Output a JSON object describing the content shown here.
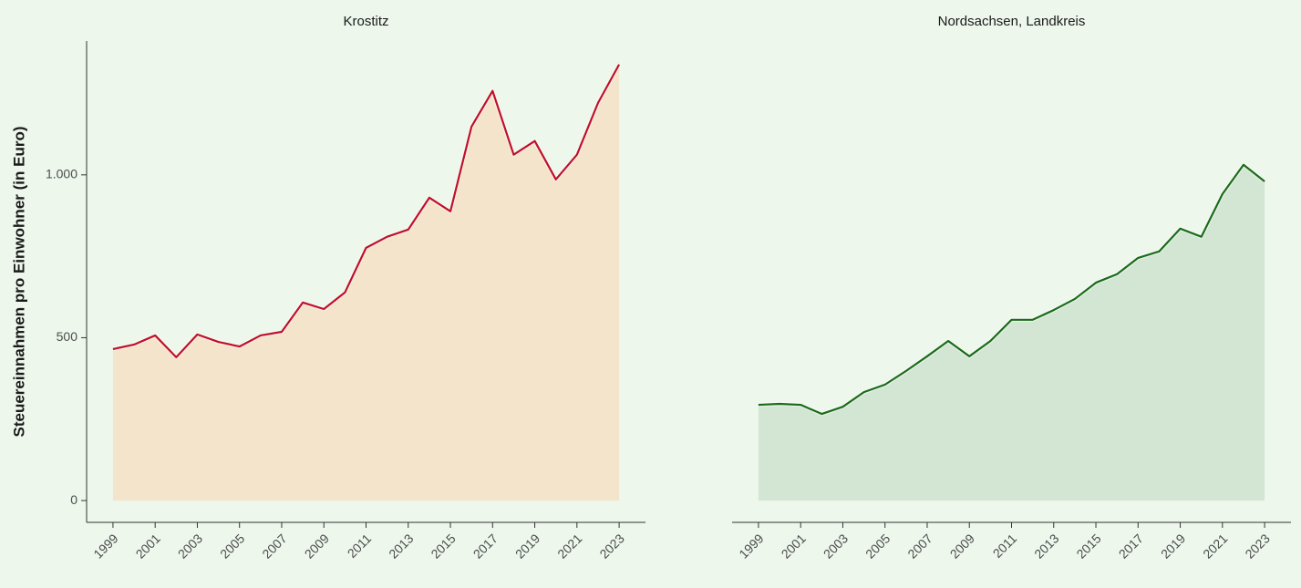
{
  "chart_data": [
    {
      "type": "area",
      "title": "Krostitz",
      "ylabel": "Steuereinnahmen pro Einwohner (in Euro)",
      "x": [
        1999,
        2000,
        2001,
        2002,
        2003,
        2004,
        2005,
        2006,
        2007,
        2008,
        2009,
        2010,
        2011,
        2012,
        2013,
        2014,
        2015,
        2016,
        2017,
        2018,
        2019,
        2020,
        2021,
        2022,
        2023
      ],
      "values": [
        465,
        479,
        507,
        440,
        510,
        487,
        473,
        507,
        518,
        608,
        588,
        639,
        776,
        810,
        832,
        930,
        888,
        1148,
        1258,
        1062,
        1104,
        986,
        1062,
        1221,
        1339
      ],
      "color": "#c0102a",
      "fill": "#f5e4cc",
      "xlim": [
        1997.75,
        2024.25
      ],
      "xticks": [
        1999,
        2001,
        2003,
        2005,
        2007,
        2009,
        2011,
        2013,
        2015,
        2017,
        2019,
        2021,
        2023
      ],
      "ylim": [
        -67,
        1411
      ],
      "yticks": [
        0,
        500,
        {
          "value": 1000,
          "label": "1.000"
        }
      ]
    },
    {
      "type": "area",
      "title": "Nordsachsen, Landkreis",
      "x": [
        1999,
        2000,
        2001,
        2002,
        2003,
        2004,
        2005,
        2006,
        2007,
        2008,
        2009,
        2010,
        2011,
        2012,
        2013,
        2014,
        2015,
        2016,
        2017,
        2018,
        2019,
        2020,
        2021,
        2022,
        2023
      ],
      "values": [
        294,
        297,
        294,
        266,
        288,
        333,
        356,
        398,
        443,
        490,
        443,
        490,
        555,
        555,
        585,
        619,
        669,
        695,
        745,
        765,
        835,
        810,
        941,
        1031,
        980
      ],
      "color": "#1a6b1a",
      "fill": "#d3e6d3",
      "xlim": [
        1997.75,
        2024.25
      ],
      "xticks": [
        1999,
        2001,
        2003,
        2005,
        2007,
        2009,
        2011,
        2013,
        2015,
        2017,
        2019,
        2021,
        2023
      ],
      "ylim": [
        -67,
        1411
      ]
    }
  ]
}
